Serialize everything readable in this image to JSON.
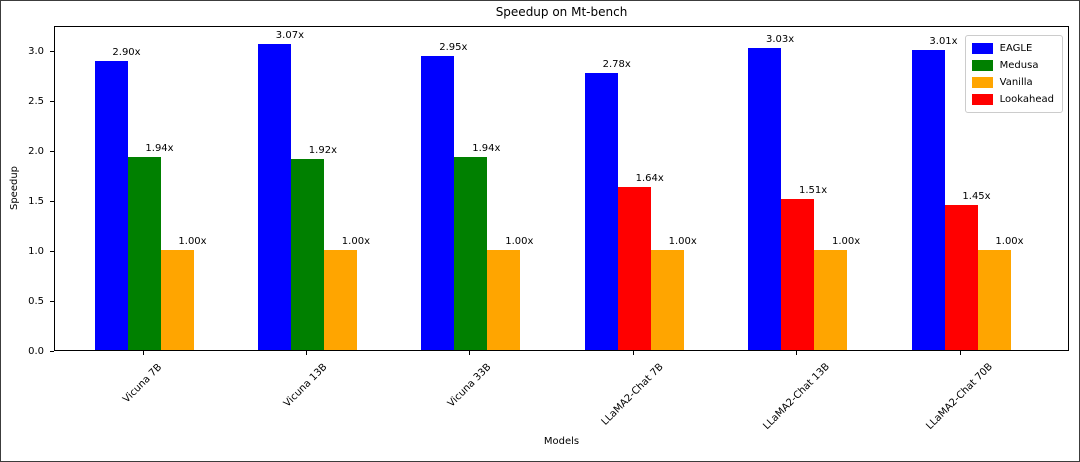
{
  "figure": {
    "background": "#ffffff",
    "axes_edge_color": "#000000",
    "text_color": "#000000",
    "legend_border_color": "#cccccc"
  },
  "chart_data": {
    "type": "bar",
    "title": "Speedup on Mt-bench",
    "xlabel": "Models",
    "ylabel": "Speedup",
    "categories": [
      "Vicuna 7B",
      "Vicuna 13B",
      "Vicuna 33B",
      "LLaMA2-Chat 7B",
      "LLaMA2-Chat 13B",
      "LLaMA2-Chat 70B"
    ],
    "series": [
      {
        "name": "EAGLE",
        "color": "#0000ff",
        "values": [
          2.9,
          3.07,
          2.95,
          2.78,
          3.03,
          3.01
        ]
      },
      {
        "name": "Medusa",
        "color": "#008000",
        "values": [
          1.94,
          1.92,
          1.94,
          null,
          null,
          null
        ]
      },
      {
        "name": "Lookahead",
        "color": "#ff0000",
        "values": [
          null,
          null,
          null,
          1.64,
          1.51,
          1.45
        ]
      },
      {
        "name": "Vanilla",
        "color": "#ffa500",
        "values": [
          1.0,
          1.0,
          1.0,
          1.0,
          1.0,
          1.0
        ]
      }
    ],
    "bar_value_labels": [
      "2.90x",
      "3.07x",
      "2.95x",
      "2.78x",
      "3.03x",
      "3.01x",
      "1.94x",
      "1.92x",
      "1.94x",
      "1.64x",
      "1.51x",
      "1.45x",
      "1.00x"
    ],
    "bar_value_suffix": "x",
    "legend_order": [
      "EAGLE",
      "Medusa",
      "Vanilla",
      "Lookahead"
    ],
    "legend_position": "upper right",
    "yticks": [
      0.0,
      0.5,
      1.0,
      1.5,
      2.0,
      2.5,
      3.0
    ],
    "ylim": [
      0,
      3.26
    ],
    "grid": false
  }
}
